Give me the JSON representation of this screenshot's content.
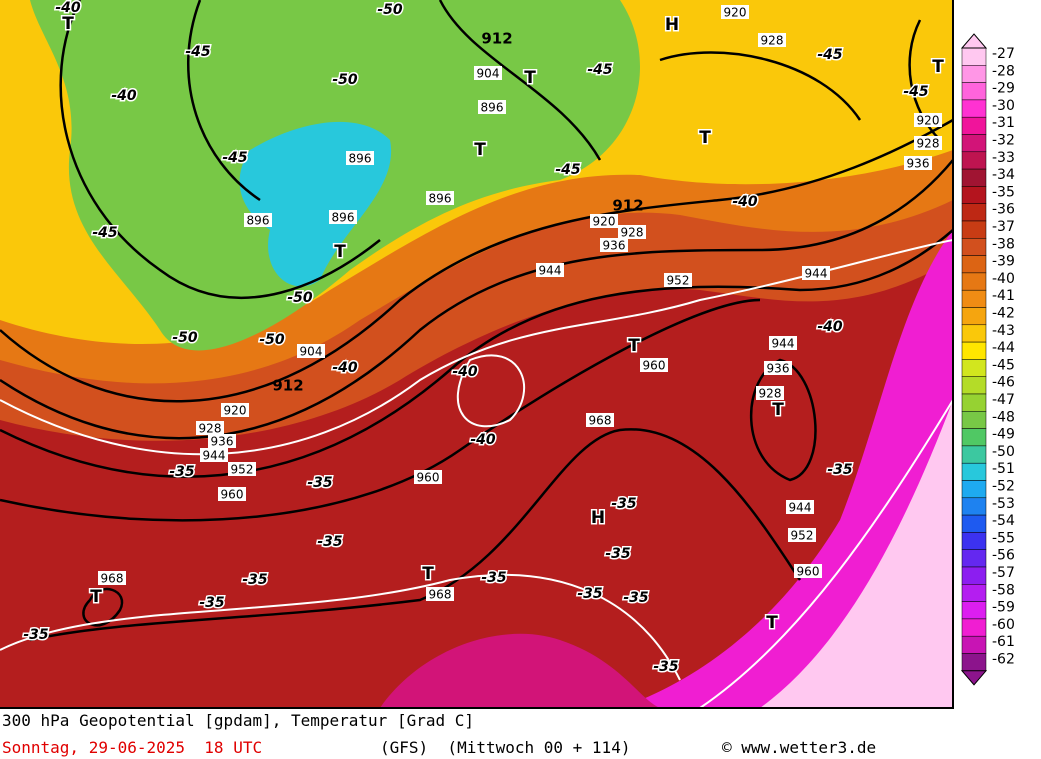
{
  "map": {
    "legend": {
      "values": [
        -27,
        -28,
        -29,
        -30,
        -31,
        -32,
        -33,
        -34,
        -35,
        -36,
        -37,
        -38,
        -39,
        -40,
        -41,
        -42,
        -43,
        -44,
        -45,
        -46,
        -47,
        -48,
        -49,
        -50,
        -51,
        -52,
        -53,
        -54,
        -55,
        -56,
        -57,
        -58,
        -59,
        -60,
        -61,
        -62
      ],
      "colors": [
        "#ffc8f0",
        "#ff96e6",
        "#ff64dc",
        "#ff32d2",
        "#f0149b",
        "#d21478",
        "#be1450",
        "#a01432",
        "#b4141e",
        "#be2814",
        "#c83c14",
        "#d2501e",
        "#dc6414",
        "#e67814",
        "#f08c14",
        "#f5a50f",
        "#fac80a",
        "#ffe600",
        "#d2e61e",
        "#b4dc28",
        "#96d232",
        "#78c846",
        "#50c864",
        "#3cc8a0",
        "#28c8dc",
        "#1eaaf0",
        "#1e82f0",
        "#1e5af0",
        "#3c32f0",
        "#6428f0",
        "#8c1ef0",
        "#b41ef0",
        "#dc1ef0",
        "#f01ed2",
        "#c814b4",
        "#8c148c"
      ]
    },
    "geopotential_labels": [
      920,
      928,
      904,
      896,
      896,
      896,
      896,
      896,
      920,
      928,
      936,
      944,
      952,
      944,
      920,
      928,
      936,
      944,
      936,
      928,
      968,
      960,
      960,
      904,
      920,
      928,
      936,
      944,
      952,
      960,
      968,
      968,
      944,
      952,
      960,
      912,
      912,
      912
    ],
    "temperature_labels": [
      -40,
      -50,
      -45,
      -50,
      -40,
      -45,
      -50,
      -50,
      -50,
      -40,
      -40,
      -40,
      -40,
      -40,
      -45,
      -45,
      -45,
      -45,
      -35,
      -35,
      -35,
      -35,
      -35,
      -35,
      -35,
      -35,
      -35,
      -35,
      -35,
      -35,
      -35,
      -45
    ],
    "pressure_centers": [
      "T",
      "H",
      "T",
      "T",
      "T",
      "T",
      "T",
      "T",
      "T",
      "H",
      "T",
      "T",
      "T"
    ],
    "caption": "300 hPa Geopotential [gpdam], Temperatur [Grad C]",
    "run_time": "Sonntag, 29-06-2025  18 UTC",
    "model": "(GFS)  (Mittwoch 00 + 114)",
    "source": "© www.wetter3.de"
  }
}
